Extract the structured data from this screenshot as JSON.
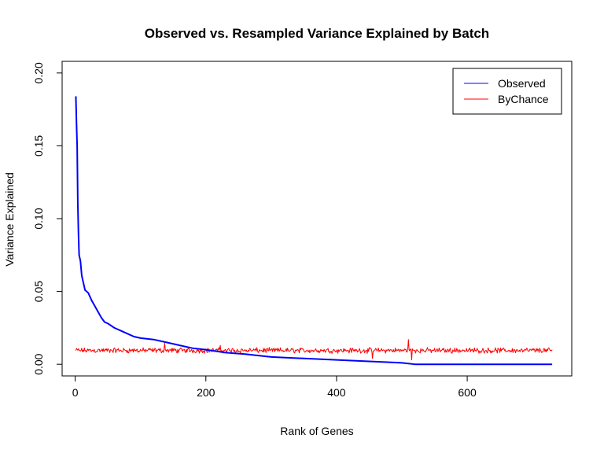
{
  "chart_data": {
    "type": "line",
    "title": "Observed vs. Resampled Variance Explained by Batch",
    "xlabel": "Rank of Genes",
    "ylabel": "Variance Explained",
    "xlim": [
      -20,
      760
    ],
    "ylim": [
      -0.008,
      0.208
    ],
    "x_ticks": [
      0,
      200,
      400,
      600
    ],
    "x_tick_labels": [
      "0",
      "200",
      "400",
      "600"
    ],
    "y_ticks": [
      0.0,
      0.05,
      0.1,
      0.15,
      0.2
    ],
    "y_tick_labels": [
      "0.00",
      "0.05",
      "0.10",
      "0.15",
      "0.20"
    ],
    "legend_position": "top-right",
    "grid": false,
    "n_points": 730,
    "series": [
      {
        "name": "Observed",
        "color": "#0000ff",
        "line_width": 2,
        "x": [
          1,
          2,
          3,
          4,
          5,
          6,
          8,
          10,
          12,
          15,
          20,
          25,
          30,
          35,
          40,
          45,
          50,
          60,
          70,
          80,
          90,
          100,
          120,
          140,
          160,
          180,
          200,
          230,
          260,
          300,
          350,
          400,
          450,
          500,
          520,
          560,
          600,
          650,
          700,
          730
        ],
        "y": [
          0.184,
          0.165,
          0.15,
          0.11,
          0.09,
          0.075,
          0.071,
          0.061,
          0.057,
          0.051,
          0.049,
          0.044,
          0.04,
          0.036,
          0.032,
          0.029,
          0.028,
          0.025,
          0.023,
          0.021,
          0.019,
          0.018,
          0.017,
          0.015,
          0.013,
          0.011,
          0.01,
          0.008,
          0.007,
          0.005,
          0.004,
          0.003,
          0.002,
          0.001,
          0.0,
          0.0,
          0.0,
          0.0,
          0.0,
          0.0
        ]
      },
      {
        "name": "ByChance",
        "color": "#ff0000",
        "line_width": 1,
        "x_range": [
          1,
          730
        ],
        "mean": 0.0095,
        "noise_amplitude": 0.0022,
        "spikes": [
          {
            "x": 510,
            "y": 0.017
          },
          {
            "x": 137,
            "y": 0.0145
          },
          {
            "x": 222,
            "y": 0.013
          },
          {
            "x": 455,
            "y": 0.004
          },
          {
            "x": 515,
            "y": 0.003
          }
        ]
      }
    ]
  }
}
